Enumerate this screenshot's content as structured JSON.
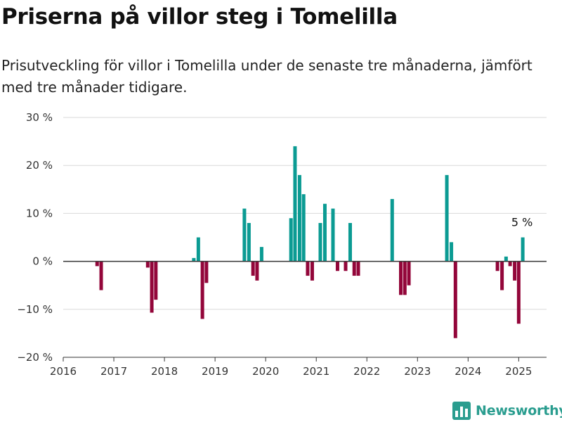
{
  "header": {
    "title": "Priserna på villor steg i Tomelilla",
    "subtitle": "Prisutveckling för villor i Tomelilla under de senaste tre månaderna, jämfört med tre månader tidigare."
  },
  "brand": {
    "name": "Newsworthy",
    "icon": "bar-chart-logo-icon",
    "color": "#2a9d8f"
  },
  "colors": {
    "positive": "#0b9b93",
    "negative": "#93063a",
    "grid": "#d9d9d9",
    "axis": "#333333"
  },
  "chart_data": {
    "type": "bar",
    "title": "Priserna på villor steg i Tomelilla",
    "subtitle": "Prisutveckling för villor i Tomelilla under de senaste tre månaderna, jämfört med tre månader tidigare.",
    "xlabel": "",
    "ylabel": "",
    "xlim": [
      2016,
      2025.55
    ],
    "ylim": [
      -20,
      30
    ],
    "x_ticks": [
      2016,
      2017,
      2018,
      2019,
      2020,
      2021,
      2022,
      2023,
      2024,
      2025
    ],
    "x_tick_labels": [
      "2016",
      "2017",
      "2018",
      "2019",
      "2020",
      "2021",
      "2022",
      "2023",
      "2024",
      "2025"
    ],
    "y_ticks": [
      -20,
      -10,
      0,
      10,
      20,
      30
    ],
    "y_tick_labels": [
      "−20 %",
      "−10 %",
      "0 %",
      "10 %",
      "20 %",
      "30 %"
    ],
    "grid": "horizontal",
    "legend": "none",
    "annotation": {
      "x": 2025.08,
      "value": 5,
      "text": "5 %"
    },
    "series": [
      {
        "x": [
          2016.67,
          2016.75,
          2017.67,
          2017.75,
          2017.83,
          2018.58,
          2018.67,
          2018.75,
          2018.83,
          2019.58,
          2019.67,
          2019.75,
          2019.83,
          2019.92,
          2020.5,
          2020.58,
          2020.67,
          2020.75,
          2020.83,
          2020.92,
          2021.08,
          2021.17,
          2021.33,
          2021.42,
          2021.58,
          2021.67,
          2021.75,
          2021.83,
          2022.5,
          2022.67,
          2022.75,
          2022.83,
          2023.58,
          2023.67,
          2023.75,
          2024.58,
          2024.67,
          2024.75,
          2024.83,
          2024.92,
          2025.0,
          2025.08
        ],
        "values": [
          -1,
          -6,
          -1.3,
          -10.7,
          -8,
          0.7,
          5,
          -12,
          -4.5,
          11,
          8,
          -3,
          -4,
          3,
          9,
          24,
          18,
          14,
          -3,
          -4,
          8,
          12,
          11,
          -2,
          -2,
          8,
          -3,
          -3,
          13,
          -7,
          -7,
          -5,
          18,
          4,
          -16,
          -2,
          -6,
          1,
          -1,
          -4,
          -13,
          5
        ]
      }
    ]
  }
}
